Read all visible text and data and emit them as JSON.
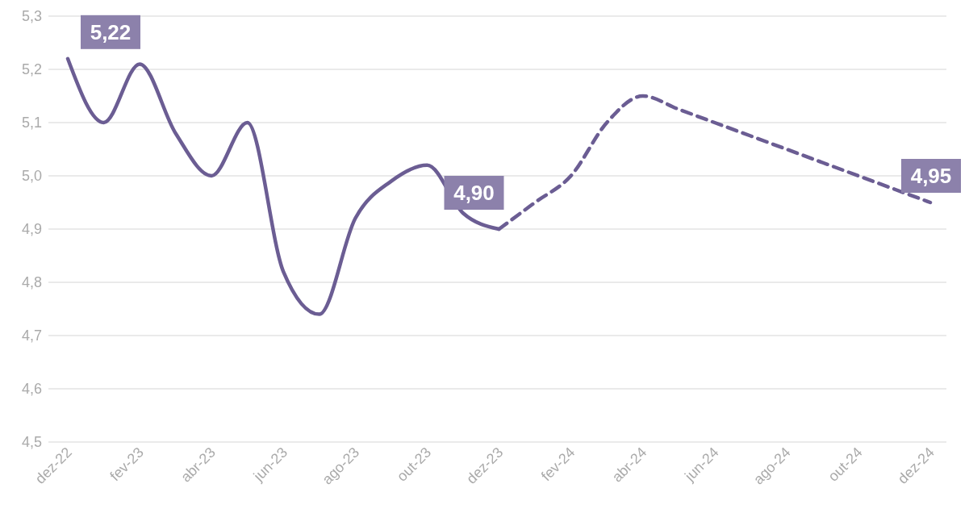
{
  "chart_data": {
    "type": "line",
    "categories": [
      "dez-22",
      null,
      "fev-23",
      null,
      "abr-23",
      null,
      "jun-23",
      null,
      "ago-23",
      null,
      "out-23",
      null,
      "dez-23",
      null,
      "fev-24",
      null,
      "abr-24",
      null,
      "jun-24",
      null,
      "ago-24",
      null,
      "out-24",
      null,
      "dez-24"
    ],
    "series": [
      {
        "color": "#6b5d93",
        "line_style": "solid",
        "values": [
          5.22,
          5.1,
          5.21,
          5.08,
          5.0,
          5.1,
          4.82,
          4.74,
          4.92,
          4.99,
          5.02,
          4.93,
          4.9,
          null,
          null,
          null,
          null,
          null,
          null,
          null,
          null,
          null,
          null,
          null,
          null
        ],
        "value_labels": [
          "5,22",
          null,
          null,
          null,
          null,
          null,
          null,
          null,
          null,
          null,
          null,
          null,
          null,
          null,
          null,
          null,
          null,
          null,
          null,
          null,
          null,
          null,
          null,
          null,
          null
        ]
      },
      {
        "color": "#6b5d93",
        "line_style": "dashed",
        "values": [
          null,
          null,
          null,
          null,
          null,
          null,
          null,
          null,
          null,
          null,
          null,
          null,
          4.9,
          4.95,
          5.0,
          5.1,
          5.15,
          5.125,
          5.1,
          5.075,
          5.05,
          5.025,
          5.0,
          4.975,
          4.95
        ],
        "value_labels": [
          null,
          null,
          null,
          null,
          null,
          null,
          null,
          null,
          null,
          null,
          null,
          null,
          "4,90",
          null,
          null,
          null,
          null,
          null,
          null,
          null,
          null,
          null,
          null,
          null,
          "4,95"
        ]
      }
    ],
    "ylim": [
      4.5,
      5.3
    ],
    "yticks": [
      {
        "value": 4.5,
        "label": "4,5"
      },
      {
        "value": 4.6,
        "label": "4,6"
      },
      {
        "value": 4.7,
        "label": "4,7"
      },
      {
        "value": 4.8,
        "label": "4,8"
      },
      {
        "value": 4.9,
        "label": "4,9"
      },
      {
        "value": 5.0,
        "label": "5,0"
      },
      {
        "value": 5.1,
        "label": "5,1"
      },
      {
        "value": 5.2,
        "label": "5,2"
      },
      {
        "value": 5.3,
        "label": "5,3"
      }
    ],
    "grid": "y"
  }
}
